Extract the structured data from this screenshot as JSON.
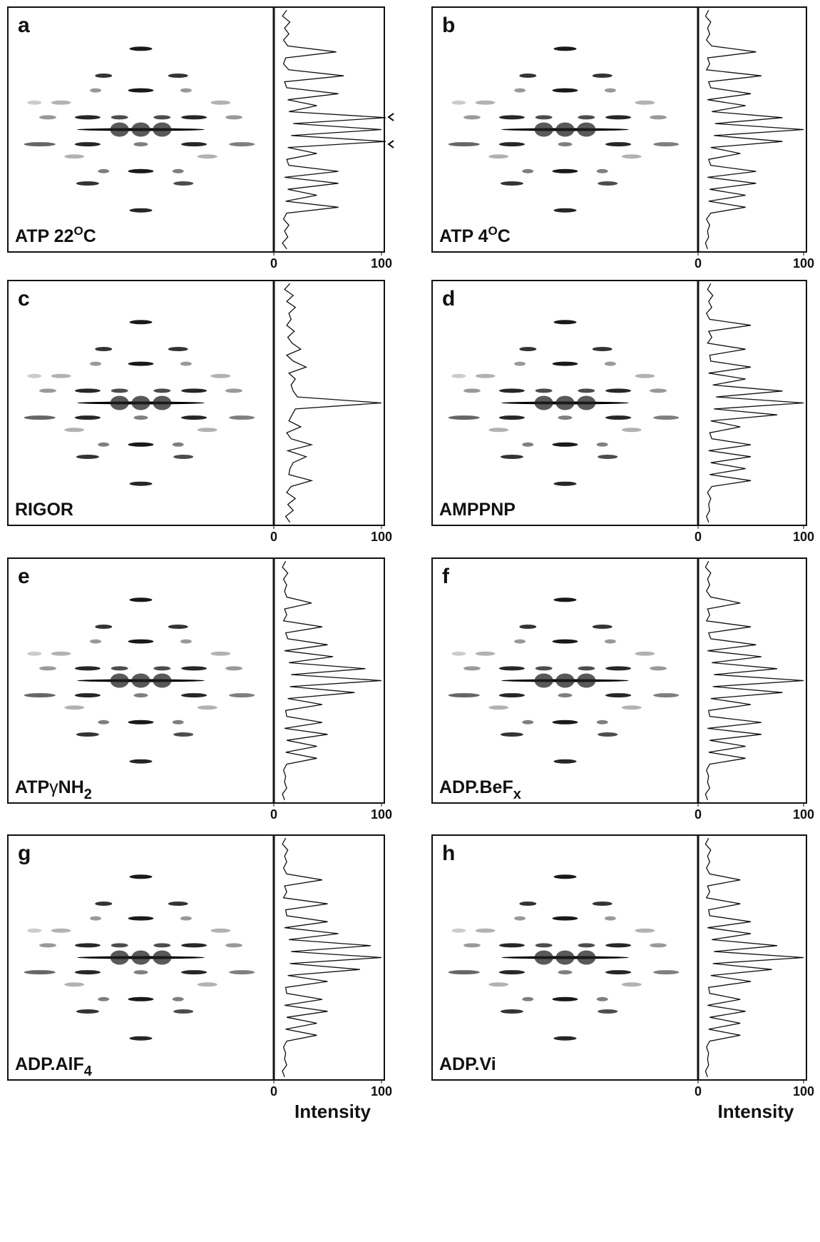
{
  "figure": {
    "panels": [
      {
        "letter": "a",
        "label": {
          "main": "ATP 22",
          "sup": "O",
          "tail": "C"
        },
        "xlim": [
          0,
          100
        ],
        "xticks": [
          0,
          100
        ],
        "profile": [
          12,
          8,
          15,
          10,
          14,
          9,
          13,
          58,
          11,
          9,
          14,
          65,
          10,
          12,
          60,
          13,
          40,
          14,
          104,
          18,
          100,
          16,
          104,
          13,
          40,
          12,
          14,
          60,
          10,
          60,
          13,
          40,
          11,
          60,
          12,
          9,
          14,
          10,
          13,
          8,
          12
        ]
      },
      {
        "letter": "b",
        "label": {
          "main": "ATP 4",
          "sup": "O",
          "tail": "C"
        },
        "xlim": [
          0,
          100
        ],
        "xticks": [
          0,
          100
        ],
        "profile": [
          10,
          7,
          12,
          9,
          11,
          8,
          13,
          55,
          9,
          11,
          8,
          60,
          10,
          12,
          50,
          9,
          45,
          13,
          80,
          16,
          100,
          15,
          80,
          12,
          40,
          10,
          12,
          55,
          9,
          55,
          11,
          45,
          10,
          45,
          12,
          8,
          11,
          9,
          10,
          7,
          9
        ]
      },
      {
        "letter": "c",
        "label": {
          "main": "RIGOR"
        },
        "xlim": [
          0,
          100
        ],
        "xticks": [
          0,
          100
        ],
        "profile": [
          15,
          10,
          18,
          12,
          20,
          14,
          16,
          12,
          19,
          13,
          17,
          25,
          12,
          18,
          30,
          14,
          20,
          16,
          18,
          22,
          100,
          20,
          17,
          14,
          25,
          12,
          16,
          35,
          13,
          30,
          18,
          15,
          14,
          35,
          16,
          12,
          20,
          13,
          18,
          11,
          15
        ]
      },
      {
        "letter": "d",
        "label": {
          "main": "AMPPNP"
        },
        "xlim": [
          0,
          100
        ],
        "xticks": [
          0,
          100
        ],
        "profile": [
          12,
          9,
          14,
          10,
          13,
          8,
          11,
          50,
          10,
          13,
          9,
          45,
          11,
          12,
          50,
          10,
          45,
          14,
          80,
          17,
          100,
          15,
          75,
          12,
          40,
          11,
          13,
          50,
          10,
          50,
          12,
          45,
          11,
          50,
          13,
          9,
          12,
          10,
          11,
          8,
          10
        ]
      },
      {
        "letter": "e",
        "label": {
          "main": "ATP",
          "greek": "γ",
          "main2": "NH",
          "sub": "2"
        },
        "xlim": [
          0,
          100
        ],
        "xticks": [
          0,
          100
        ],
        "profile": [
          11,
          8,
          13,
          9,
          12,
          10,
          12,
          35,
          10,
          12,
          9,
          45,
          11,
          13,
          50,
          10,
          55,
          14,
          85,
          16,
          100,
          15,
          75,
          13,
          45,
          11,
          12,
          45,
          10,
          50,
          12,
          40,
          11,
          40,
          12,
          9,
          11,
          10,
          12,
          8,
          10
        ]
      },
      {
        "letter": "f",
        "label": {
          "main": "ADP.BeF",
          "sub": "x"
        },
        "xlim": [
          0,
          100
        ],
        "xticks": [
          0,
          100
        ],
        "profile": [
          10,
          7,
          12,
          9,
          11,
          8,
          12,
          40,
          9,
          11,
          8,
          50,
          10,
          12,
          55,
          9,
          60,
          13,
          75,
          15,
          100,
          14,
          80,
          12,
          50,
          10,
          11,
          60,
          9,
          60,
          11,
          45,
          10,
          45,
          11,
          8,
          10,
          9,
          11,
          7,
          9
        ]
      },
      {
        "letter": "g",
        "label": {
          "main": "ADP.AlF",
          "sub": "4"
        },
        "xlim": [
          0,
          100
        ],
        "xticks": [
          0,
          100
        ],
        "xlabel": "Intensity",
        "profile": [
          11,
          8,
          13,
          10,
          12,
          9,
          12,
          45,
          10,
          12,
          9,
          50,
          11,
          12,
          50,
          10,
          60,
          14,
          90,
          16,
          100,
          15,
          80,
          13,
          50,
          11,
          12,
          45,
          10,
          50,
          12,
          40,
          11,
          40,
          12,
          9,
          11,
          10,
          12,
          8,
          10
        ]
      },
      {
        "letter": "h",
        "label": {
          "main": "ADP.Vi"
        },
        "xlim": [
          0,
          100
        ],
        "xticks": [
          0,
          100
        ],
        "xlabel": "Intensity",
        "profile": [
          10,
          7,
          12,
          9,
          11,
          8,
          11,
          40,
          9,
          11,
          8,
          40,
          10,
          11,
          50,
          9,
          50,
          13,
          75,
          15,
          100,
          14,
          70,
          12,
          50,
          10,
          11,
          40,
          9,
          45,
          11,
          40,
          10,
          40,
          11,
          8,
          10,
          9,
          10,
          7,
          9
        ]
      }
    ]
  }
}
